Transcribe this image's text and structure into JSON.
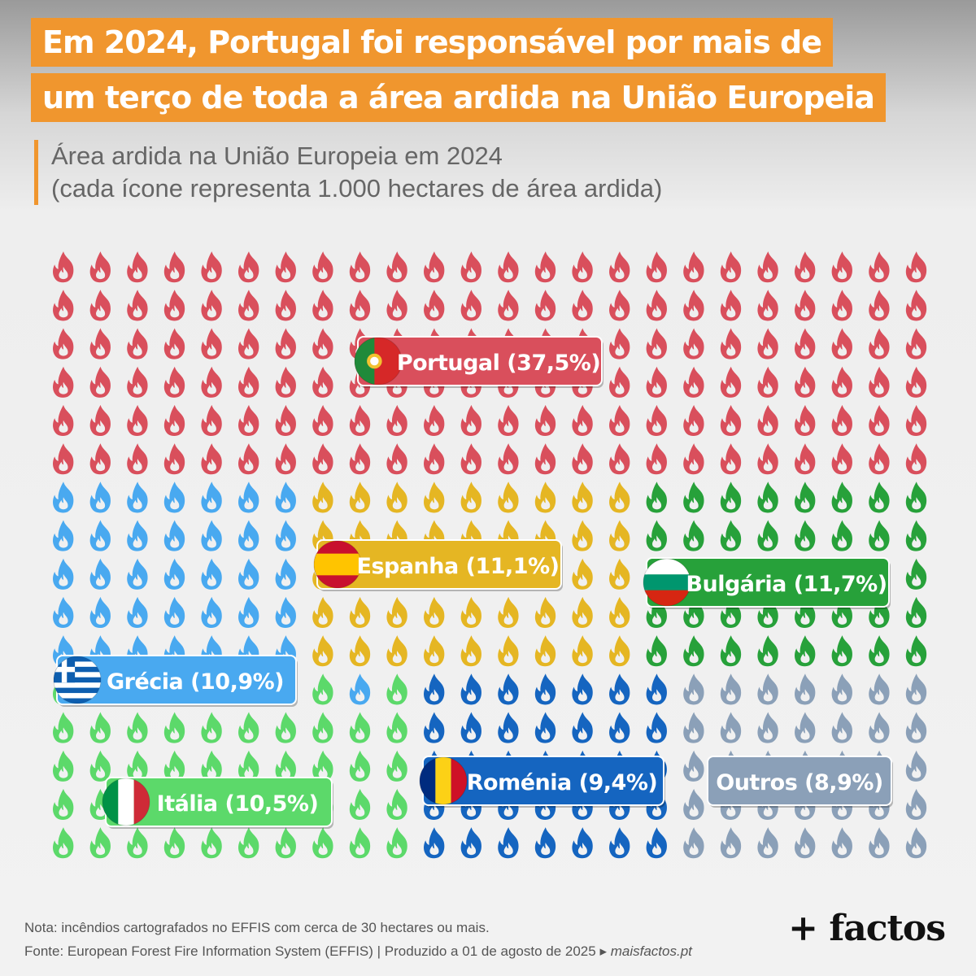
{
  "title": {
    "line1": "Em 2024, Portugal foi responsável por mais de",
    "line2": "um terço de toda a área ardida na União Europeia"
  },
  "subtitle": {
    "line1": "Área ardida na União Europeia em 2024",
    "line2": "(cada ícone representa 1.000 hectares de área ardida)"
  },
  "chart_data": {
    "type": "pictogram",
    "unit": "1.000 hectares de área ardida por ícone",
    "legend": "none",
    "grid": false,
    "series": [
      {
        "name": "Portugal",
        "label": "Portugal (37,5%)",
        "percent": 37.5,
        "color": "#d94f5c",
        "flag": "portugal-flag-icon"
      },
      {
        "name": "Grécia",
        "label": "Grécia (10,9%)",
        "percent": 10.9,
        "color": "#49a9f0",
        "flag": "greece-flag-icon"
      },
      {
        "name": "Espanha",
        "label": "Espanha (11,1%)",
        "percent": 11.1,
        "color": "#e5b623",
        "flag": "spain-flag-icon"
      },
      {
        "name": "Bulgária",
        "label": "Bulgária (11,7%)",
        "percent": 11.7,
        "color": "#27a13a",
        "flag": "bulgaria-flag-icon"
      },
      {
        "name": "Itália",
        "label": "Itália (10,5%)",
        "percent": 10.5,
        "color": "#5cd96a",
        "flag": "italy-flag-icon"
      },
      {
        "name": "Roménia",
        "label": "Roménia (9,4%)",
        "percent": 9.4,
        "color": "#1565c0",
        "flag": "romania-flag-icon"
      },
      {
        "name": "Outros",
        "label": "Outros (8,9%)",
        "percent": 8.9,
        "color": "#8ba0b8",
        "flag": null
      }
    ]
  },
  "footer": {
    "note": "Nota: incêndios cartografados no EFFIS com cerca de 30 hectares ou mais.",
    "source": "Fonte: European Forest Fire Information System (EFFIS) | Produzido a 01 de agosto de 2025 ▸",
    "site": "maisfactos.pt",
    "logo": "+ factos"
  }
}
